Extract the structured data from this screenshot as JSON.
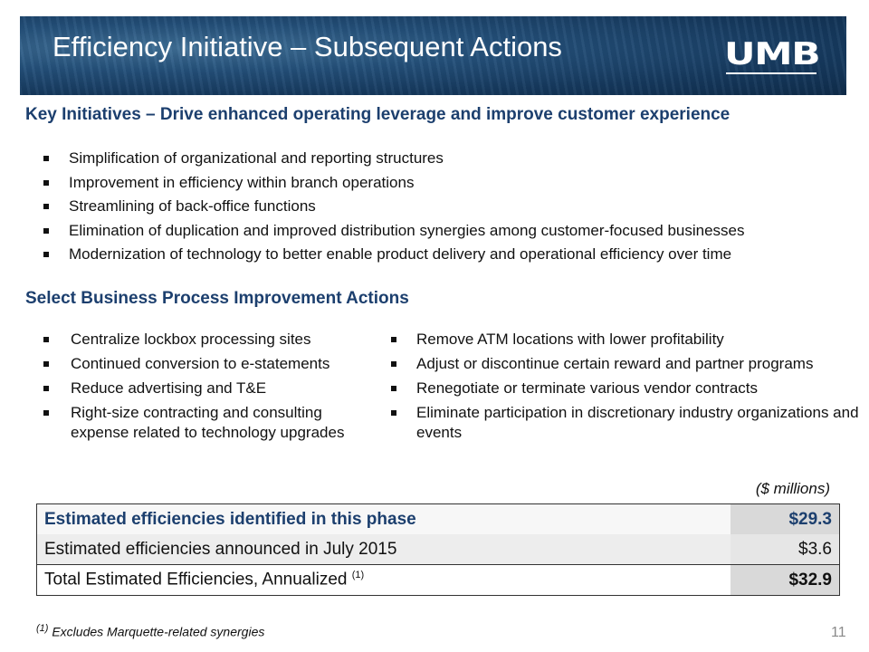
{
  "header": {
    "title": "Efficiency Initiative – Subsequent Actions",
    "logo": "UMB"
  },
  "key_initiatives": {
    "heading": "Key Initiatives – Drive enhanced operating leverage and improve customer experience",
    "items": [
      "Simplification of organizational and reporting structures",
      "Improvement in efficiency within branch operations",
      "Streamlining of back-office functions",
      "Elimination of duplication and improved distribution synergies among customer-focused businesses",
      "Modernization of technology to better enable product delivery and operational efficiency over time"
    ]
  },
  "process_actions": {
    "heading": "Select Business Process Improvement Actions",
    "left": [
      "Centralize lockbox processing sites",
      "Continued conversion to e-statements",
      "Reduce advertising and T&E",
      "Right-size contracting and consulting expense related to technology upgrades"
    ],
    "right": [
      "Remove ATM locations with lower profitability",
      "Adjust or discontinue certain reward and partner programs",
      "Renegotiate or terminate various vendor contracts",
      "Eliminate participation in discretionary industry organizations and events"
    ]
  },
  "table": {
    "unit_note": "($ millions)",
    "rows": [
      [
        "Estimated efficiencies identified in this phase",
        "$29.3"
      ],
      [
        "Estimated efficiencies announced in July 2015",
        "$3.6"
      ],
      [
        "Total Estimated Efficiencies, Annualized",
        "$32.9"
      ]
    ],
    "note_marker": "(1)"
  },
  "footnote": {
    "marker": "(1)",
    "text": "Excludes Marquette-related synergies"
  },
  "page_number": "11"
}
